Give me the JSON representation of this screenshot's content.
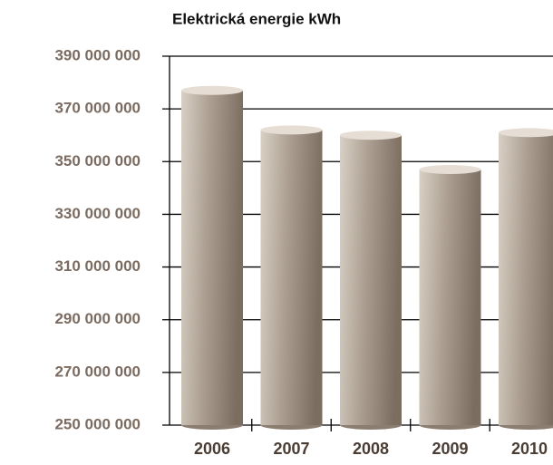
{
  "chart_data": {
    "type": "bar",
    "title": "Elektrická energie kWh",
    "categories": [
      "2006",
      "2007",
      "2008",
      "2009",
      "2010"
    ],
    "values": [
      377000000,
      362000000,
      360000000,
      347000000,
      361000000
    ],
    "color": "#b3a698",
    "ylim": [
      250000000,
      390000000
    ],
    "yticks": [
      {
        "value": 250000000,
        "label": "250 000 000"
      },
      {
        "value": 270000000,
        "label": "270 000 000"
      },
      {
        "value": 290000000,
        "label": "290 000 000"
      },
      {
        "value": 310000000,
        "label": "310 000 000"
      },
      {
        "value": 330000000,
        "label": "330 000 000"
      },
      {
        "value": 350000000,
        "label": "350 000 000"
      },
      {
        "value": 370000000,
        "label": "370 000 000"
      },
      {
        "value": 390000000,
        "label": "390 000 000"
      }
    ],
    "grid": true
  }
}
